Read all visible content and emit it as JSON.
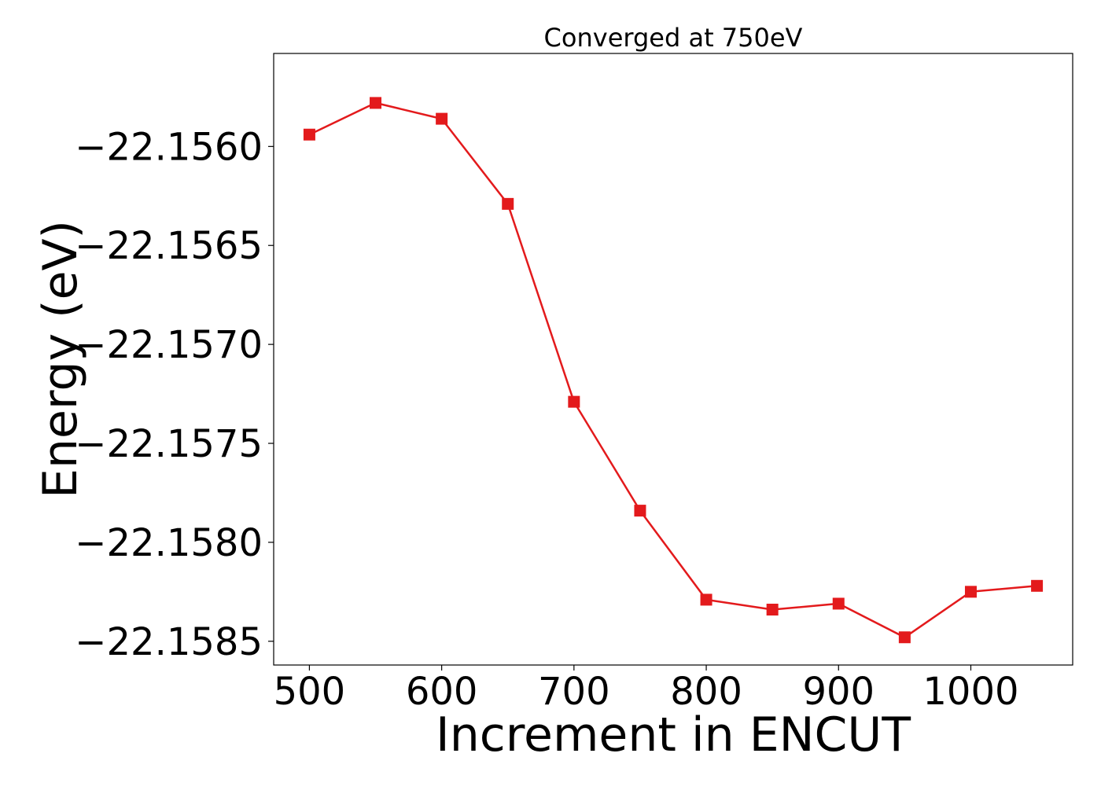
{
  "chart_data": {
    "type": "line",
    "title": "Converged at 750eV",
    "xlabel": "Increment in ENCUT",
    "ylabel": "Energy (eV)",
    "xlim": [
      473,
      1077
    ],
    "ylim": [
      -22.15862,
      -22.15553
    ],
    "xticks": [
      500,
      600,
      700,
      800,
      900,
      1000
    ],
    "xtick_labels": [
      "500",
      "600",
      "700",
      "800",
      "900",
      "1000"
    ],
    "yticks": [
      -22.156,
      -22.1565,
      -22.157,
      -22.1575,
      -22.158,
      -22.1585
    ],
    "ytick_labels": [
      "−22.1560",
      "−22.1565",
      "−22.1570",
      "−22.1575",
      "−22.1580",
      "−22.1585"
    ],
    "grid": false,
    "series": [
      {
        "color": "#e31a1c",
        "marker": "square",
        "x": [
          500,
          550,
          600,
          650,
          700,
          750,
          800,
          850,
          900,
          950,
          1000,
          1050
        ],
        "y": [
          -22.15594,
          -22.15578,
          -22.15586,
          -22.15629,
          -22.15729,
          -22.15784,
          -22.15829,
          -22.15834,
          -22.15831,
          -22.15848,
          -22.15825,
          -22.15822
        ]
      }
    ]
  }
}
